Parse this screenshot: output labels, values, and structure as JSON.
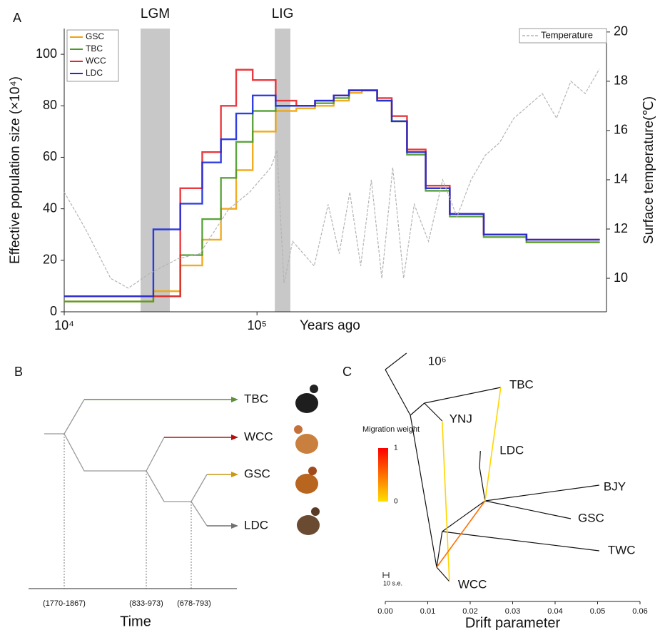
{
  "chart_data": [
    {
      "type": "line",
      "panel_label": "A",
      "x_scale": "log",
      "xlim": [
        10000,
        6500000
      ],
      "xticks": [
        {
          "value": 10000,
          "label": "10⁴"
        },
        {
          "value": 100000,
          "label": "10⁵"
        }
      ],
      "x_label": "Years ago",
      "y_label": "Effective population size (×10⁴)",
      "ylim": [
        0,
        110
      ],
      "yticks": [
        0,
        20,
        40,
        60,
        80,
        100
      ],
      "y2_label": "Surface temperature(℃)",
      "y2lim": [
        8.64,
        20.14
      ],
      "y2ticks": [
        10,
        12,
        14,
        16,
        18,
        20
      ],
      "legend": "upper left",
      "shaded_regions": [
        {
          "label": "LGM",
          "range": [
            24900,
            35300
          ]
        },
        {
          "label": "LIG",
          "range": [
            123700,
            149000
          ]
        }
      ],
      "x": [
        10000,
        29000,
        40000,
        52000,
        65000,
        78000,
        95000,
        125000,
        160000,
        200000,
        250000,
        300000,
        350000,
        420000,
        500000,
        600000,
        750000,
        1000000,
        1500000,
        2500000,
        6000000
      ],
      "series": [
        {
          "name": "GSC",
          "color": "#f0a30a",
          "values": [
            4,
            8,
            18,
            28,
            40,
            55,
            70,
            78,
            79,
            80,
            82,
            85,
            86,
            82,
            74,
            62,
            48,
            38,
            30,
            27,
            27
          ]
        },
        {
          "name": "TBC",
          "color": "#4a9a2a",
          "values": [
            4,
            6,
            22,
            36,
            52,
            66,
            78,
            80,
            80,
            81,
            83,
            86,
            86,
            82,
            74,
            61,
            47,
            37,
            29,
            27,
            27
          ]
        },
        {
          "name": "WCC",
          "color": "#e8242a",
          "values": [
            6,
            6,
            48,
            62,
            80,
            94,
            90,
            82,
            80,
            82,
            84,
            86,
            86,
            83,
            76,
            63,
            49,
            38,
            30,
            28,
            28
          ]
        },
        {
          "name": "LDC",
          "color": "#1a2ae0",
          "values": [
            6,
            32,
            42,
            58,
            67,
            77,
            84,
            80,
            80,
            82,
            84,
            86,
            86,
            82,
            74,
            62,
            48,
            38,
            30,
            28,
            28
          ]
        },
        {
          "name": "Temperature",
          "color": "#b4b4b4",
          "axis": "y2",
          "x": [
            10000,
            12900,
            17400,
            21500,
            27800,
            39100,
            50500,
            71200,
            91600,
            118000,
            127000,
            138000,
            153000,
            198000,
            234000,
            267000,
            303000,
            345000,
            392000,
            444000,
            506000,
            576000,
            654000,
            776000,
            918000,
            1090000,
            1290000,
            1530000,
            1810000,
            2150000,
            2550000,
            3020000,
            3580000,
            4250000,
            5040000,
            5970000
          ],
          "values": [
            13.5,
            12,
            10,
            9.6,
            10.2,
            10.8,
            11,
            12.8,
            13.5,
            14.5,
            15.2,
            9.8,
            11.5,
            10.5,
            13,
            11,
            13.5,
            10.5,
            14,
            10,
            14.5,
            10,
            13,
            11.5,
            14,
            12.5,
            14,
            15,
            15.5,
            16.5,
            17,
            17.5,
            16.5,
            18,
            17.5,
            18.5
          ]
        }
      ]
    },
    {
      "type": "tree",
      "panel_label": "C",
      "x_label": "Drift parameter",
      "xlim": [
        0,
        0.06
      ],
      "xticks": [
        {
          "value": 0,
          "label": "0.00"
        },
        {
          "value": 0.01,
          "label": "0.01"
        },
        {
          "value": 0.02,
          "label": "0.02"
        },
        {
          "value": 0.03,
          "label": "0.03"
        },
        {
          "value": 0.04,
          "label": "0.04"
        },
        {
          "value": 0.05,
          "label": "0.05"
        },
        {
          "value": 0.06,
          "label": "0.06"
        }
      ],
      "nodes": [
        {
          "x": 0
        },
        {
          "x": 0.005,
          "label": "10⁶"
        },
        {
          "x": 0.0059
        },
        {
          "x": 0.0092
        },
        {
          "x": 0.0272,
          "label": "TBC"
        },
        {
          "x": 0.0134,
          "label": "YNJ"
        },
        {
          "x": 0.0121
        },
        {
          "x": 0.0151,
          "label": "WCC"
        },
        {
          "x": 0.0134
        },
        {
          "x": 0.0504,
          "label": "TWC"
        },
        {
          "x": 0.0235
        },
        {
          "x": 0.0504,
          "label": "BJY"
        },
        {
          "x": 0.0437,
          "label": "GSC"
        },
        {
          "x": 0.0222
        },
        {
          "x": 0.0224,
          "label": "LDC"
        }
      ],
      "edges": [
        [
          0,
          1
        ],
        [
          0,
          2
        ],
        [
          2,
          3
        ],
        [
          3,
          4
        ],
        [
          3,
          5
        ],
        [
          2,
          6
        ],
        [
          6,
          7
        ],
        [
          6,
          8
        ],
        [
          8,
          9
        ],
        [
          8,
          10
        ],
        [
          10,
          11
        ],
        [
          10,
          12
        ],
        [
          10,
          13
        ],
        [
          13,
          14
        ]
      ],
      "migrations": [
        {
          "from": 4,
          "to": 10,
          "weight": 0.05
        },
        {
          "from": 5,
          "to": 7,
          "weight": 0.05
        },
        {
          "from": 10,
          "to": 6,
          "weight": 0.5
        }
      ],
      "migration_legend": {
        "title": "Migration weight",
        "low_color": "#ffe000",
        "high_color": "#ff0000",
        "ticks": [
          0,
          1
        ]
      },
      "scale_bar": {
        "label": "10 s.e."
      }
    }
  ],
  "diagram": {
    "panel_label": "B",
    "leaves": [
      {
        "label": "TBC",
        "color": "#5f8f3a"
      },
      {
        "label": "WCC",
        "color": "#b01010"
      },
      {
        "label": "GSC",
        "color": "#c89a10"
      },
      {
        "label": "LDC",
        "color": "#707070"
      }
    ],
    "times": [
      "(1770-1867)",
      "(833-973)",
      "(678-793)"
    ],
    "axis_label": "Time"
  }
}
